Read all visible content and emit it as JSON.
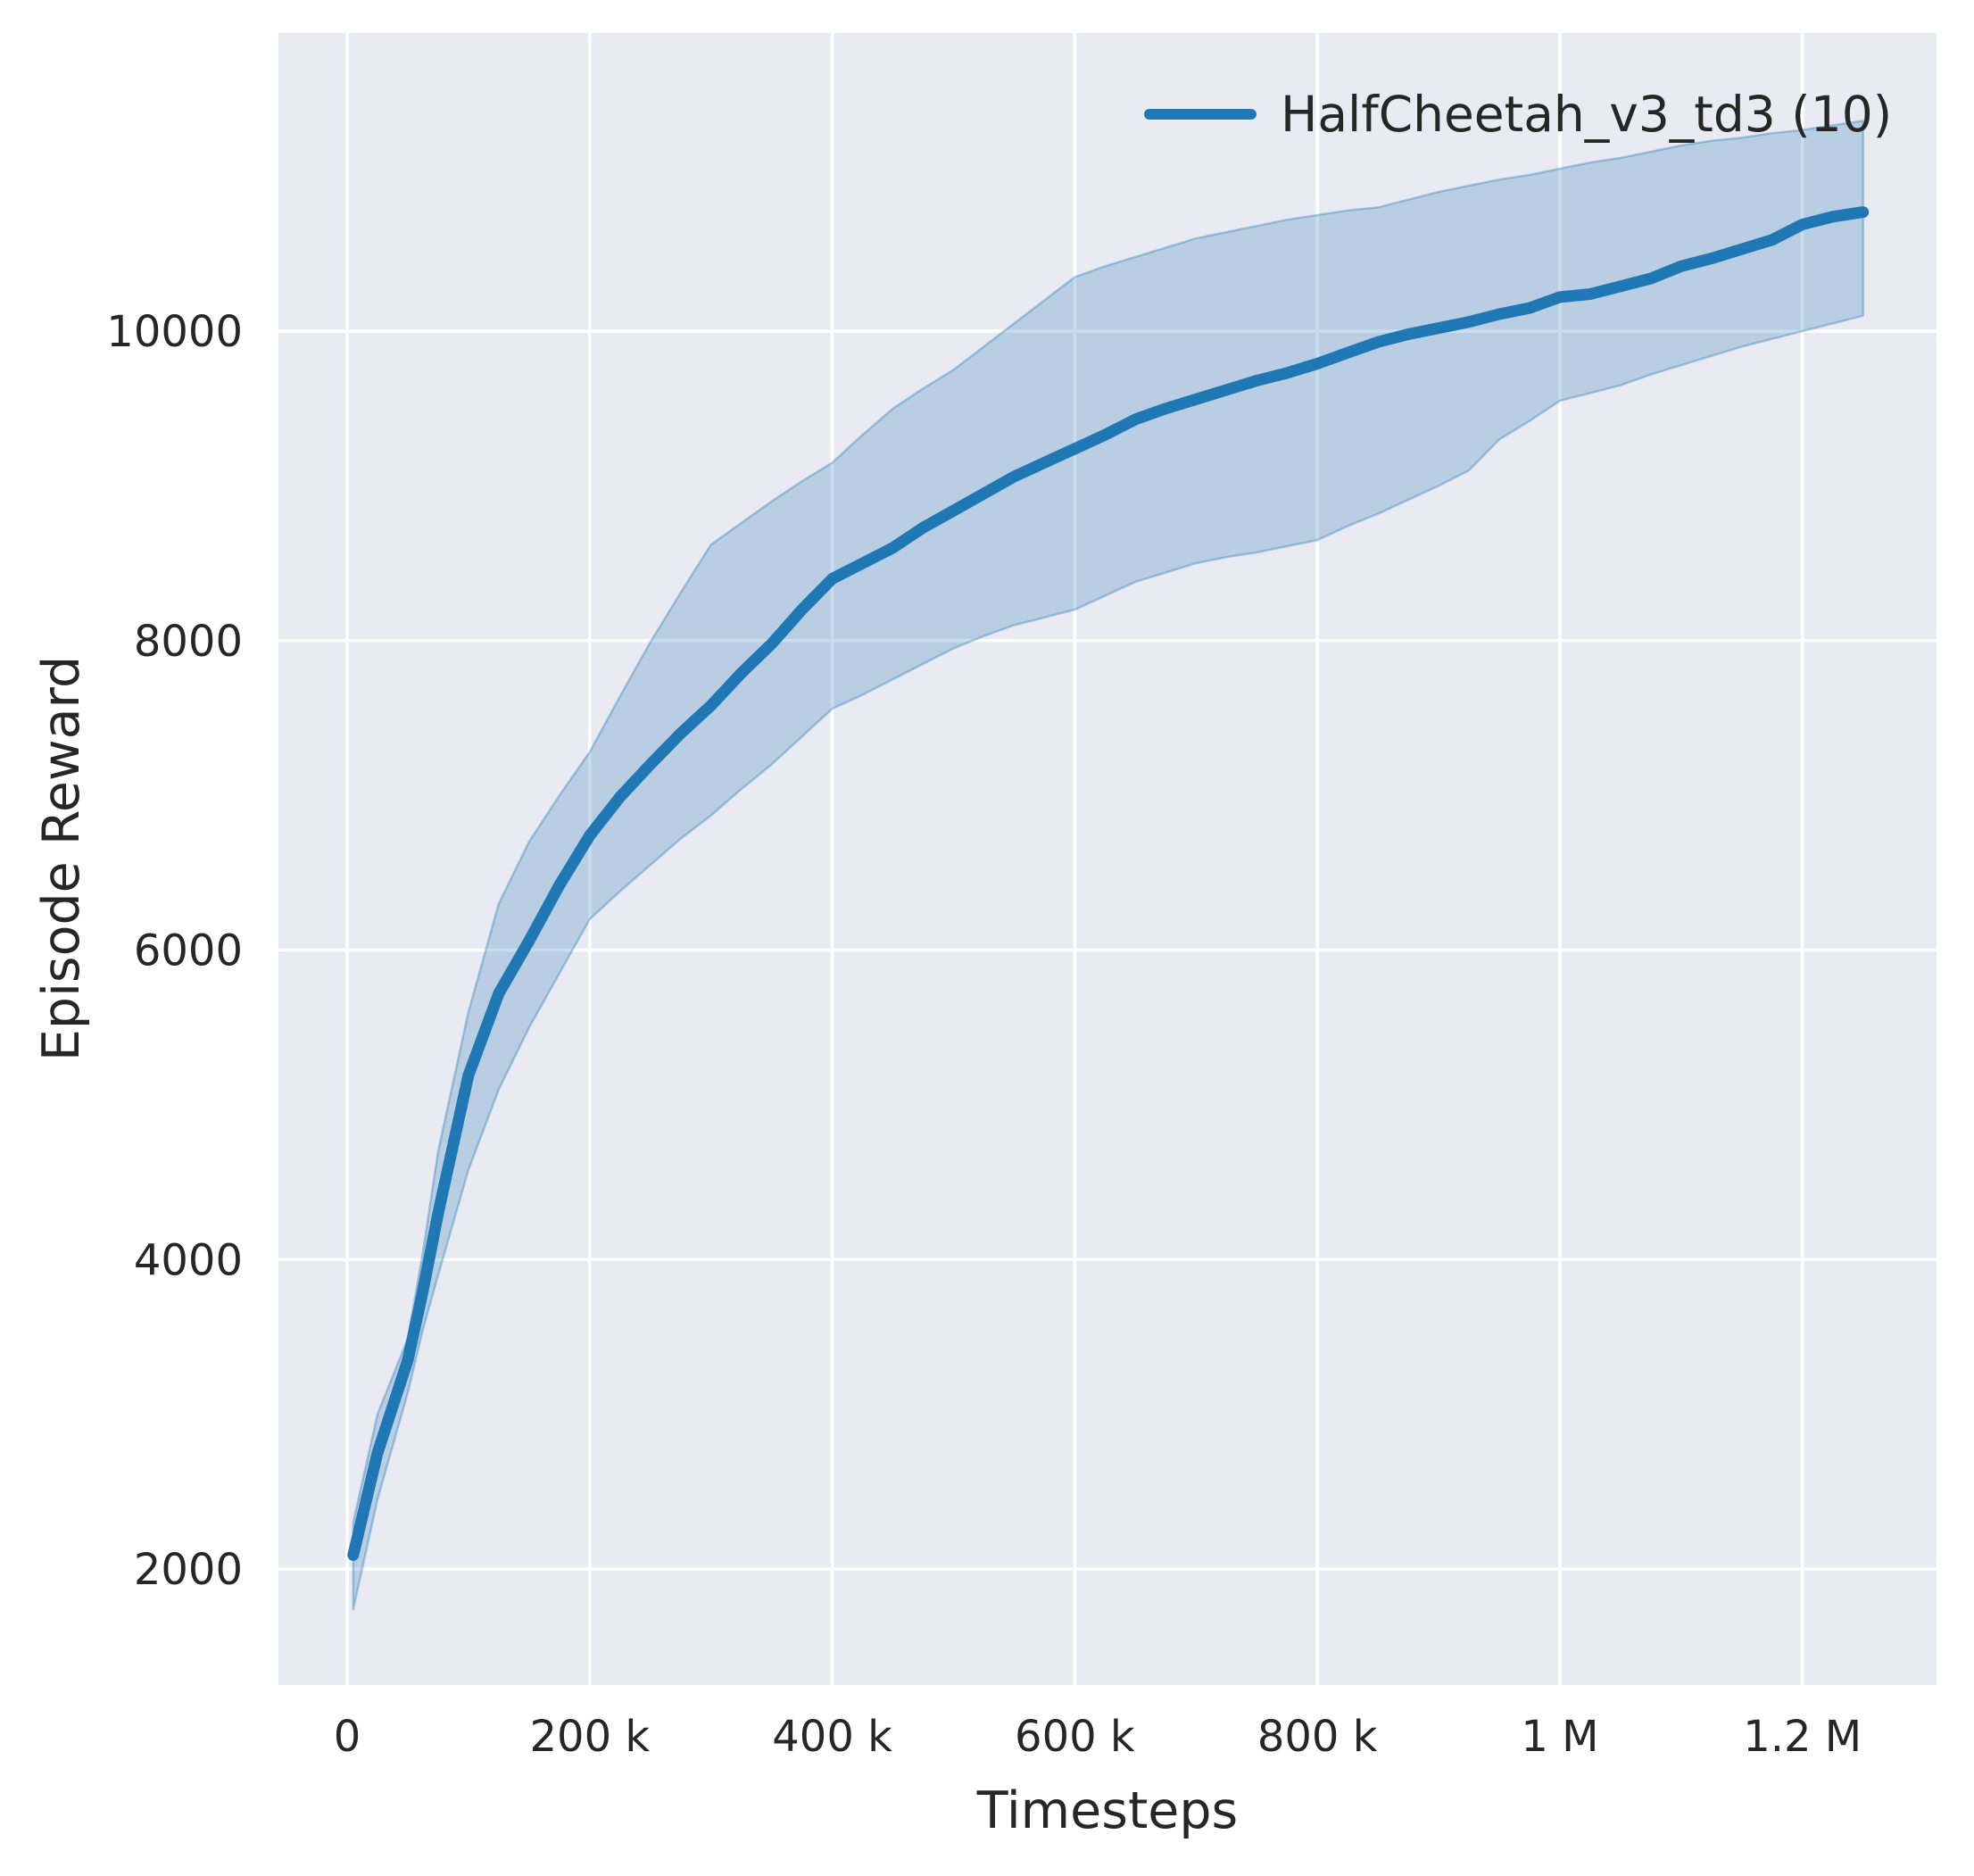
{
  "figure": {
    "xlabel": "Timesteps",
    "ylabel": "Episode Reward"
  },
  "legend": {
    "label": "HalfCheetah_v3_td3 (10)",
    "position": "upper right"
  },
  "colors": {
    "line": "#1f77b4",
    "band_fill_rgba": "rgba(31,119,180,0.24)",
    "band_edge_rgba": "rgba(31,119,180,0.35)",
    "axes_background": "#eaeaf2",
    "grid": "#ffffff",
    "text": "#262626",
    "figure_background": "#ffffff"
  },
  "chart_data": {
    "type": "line",
    "title": "",
    "xlabel": "Timesteps",
    "ylabel": "Episode Reward",
    "grid": true,
    "legend_position": "upper right",
    "xlim": [
      -56700,
      1310600
    ],
    "ylim": [
      1250,
      11927
    ],
    "xticks": {
      "values": [
        0,
        200000,
        400000,
        600000,
        800000,
        1000000,
        1200000
      ],
      "labels": [
        "0",
        "200 k",
        "400 k",
        "600 k",
        "800 k",
        "1 M",
        "1.2 M"
      ]
    },
    "yticks": {
      "values": [
        2000,
        4000,
        6000,
        8000,
        10000
      ],
      "labels": [
        "2000",
        "4000",
        "6000",
        "8000",
        "10000"
      ]
    },
    "series": [
      {
        "name": "HalfCheetah_v3_td3 (10)",
        "x": [
          5000,
          25000,
          50000,
          62500,
          75000,
          100000,
          125000,
          150000,
          175000,
          200000,
          225000,
          250000,
          275000,
          300000,
          325000,
          350000,
          375000,
          400000,
          425000,
          450000,
          475000,
          500000,
          525000,
          550000,
          575000,
          600000,
          625000,
          650000,
          675000,
          700000,
          725000,
          750000,
          775000,
          800000,
          825000,
          850000,
          875000,
          900000,
          925000,
          950000,
          975000,
          1000000,
          1025000,
          1050000,
          1075000,
          1100000,
          1125000,
          1150000,
          1175000,
          1200000,
          1225000,
          1250000
        ],
        "mean": [
          2090,
          2750,
          3350,
          3800,
          4300,
          5190,
          5720,
          6060,
          6420,
          6740,
          6990,
          7200,
          7400,
          7580,
          7790,
          7980,
          8200,
          8400,
          8500,
          8600,
          8730,
          8840,
          8950,
          9060,
          9150,
          9240,
          9330,
          9430,
          9500,
          9560,
          9620,
          9680,
          9730,
          9790,
          9860,
          9930,
          9980,
          10020,
          10060,
          10110,
          10150,
          10220,
          10240,
          10290,
          10340,
          10420,
          10470,
          10530,
          10590,
          10690,
          10740,
          10770
        ],
        "lower": [
          1740,
          2450,
          3140,
          3550,
          3900,
          4580,
          5100,
          5500,
          5850,
          6200,
          6380,
          6550,
          6720,
          6870,
          7040,
          7200,
          7380,
          7560,
          7650,
          7750,
          7850,
          7950,
          8030,
          8100,
          8150,
          8200,
          8290,
          8380,
          8440,
          8500,
          8540,
          8570,
          8610,
          8650,
          8740,
          8820,
          8910,
          9000,
          9100,
          9300,
          9420,
          9550,
          9600,
          9650,
          9720,
          9780,
          9840,
          9900,
          9950,
          10000,
          10050,
          10100
        ],
        "upper": [
          2300,
          3000,
          3490,
          4050,
          4700,
          5600,
          6300,
          6700,
          7000,
          7280,
          7640,
          7990,
          8310,
          8620,
          8760,
          8900,
          9030,
          9150,
          9330,
          9500,
          9630,
          9750,
          9900,
          10050,
          10200,
          10350,
          10420,
          10480,
          10540,
          10600,
          10640,
          10680,
          10720,
          10750,
          10780,
          10800,
          10850,
          10900,
          10940,
          10980,
          11010,
          11050,
          11090,
          11120,
          11160,
          11200,
          11230,
          11250,
          11280,
          11300,
          11330,
          11360
        ]
      }
    ]
  }
}
